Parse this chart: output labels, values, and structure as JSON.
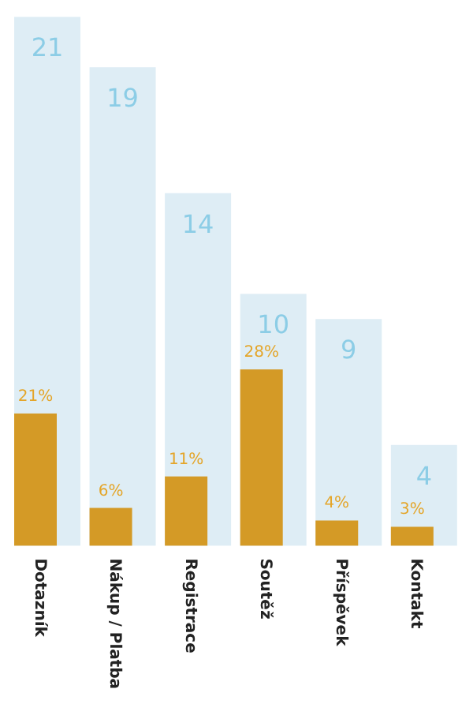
{
  "chart_data": {
    "type": "bar",
    "categories": [
      "Dotazník",
      "Nákup / Platba",
      "Registrace",
      "Soutěž",
      "Příspěvek",
      "Kontakt"
    ],
    "ylim": [
      0,
      21
    ],
    "y2lim": [
      0,
      84
    ],
    "series": [
      {
        "color": "#deedf5",
        "values": [
          21,
          19,
          14,
          10,
          9,
          4
        ],
        "value_labels": [
          "21",
          "19",
          "14",
          "10",
          "9",
          "4"
        ]
      },
      {
        "color": "#d49a26",
        "axis": "y2",
        "values": [
          21,
          6,
          11,
          28,
          4,
          3
        ],
        "value_labels": [
          "21%",
          "6%",
          "11%",
          "28%",
          "4%",
          "3%"
        ]
      }
    ]
  }
}
